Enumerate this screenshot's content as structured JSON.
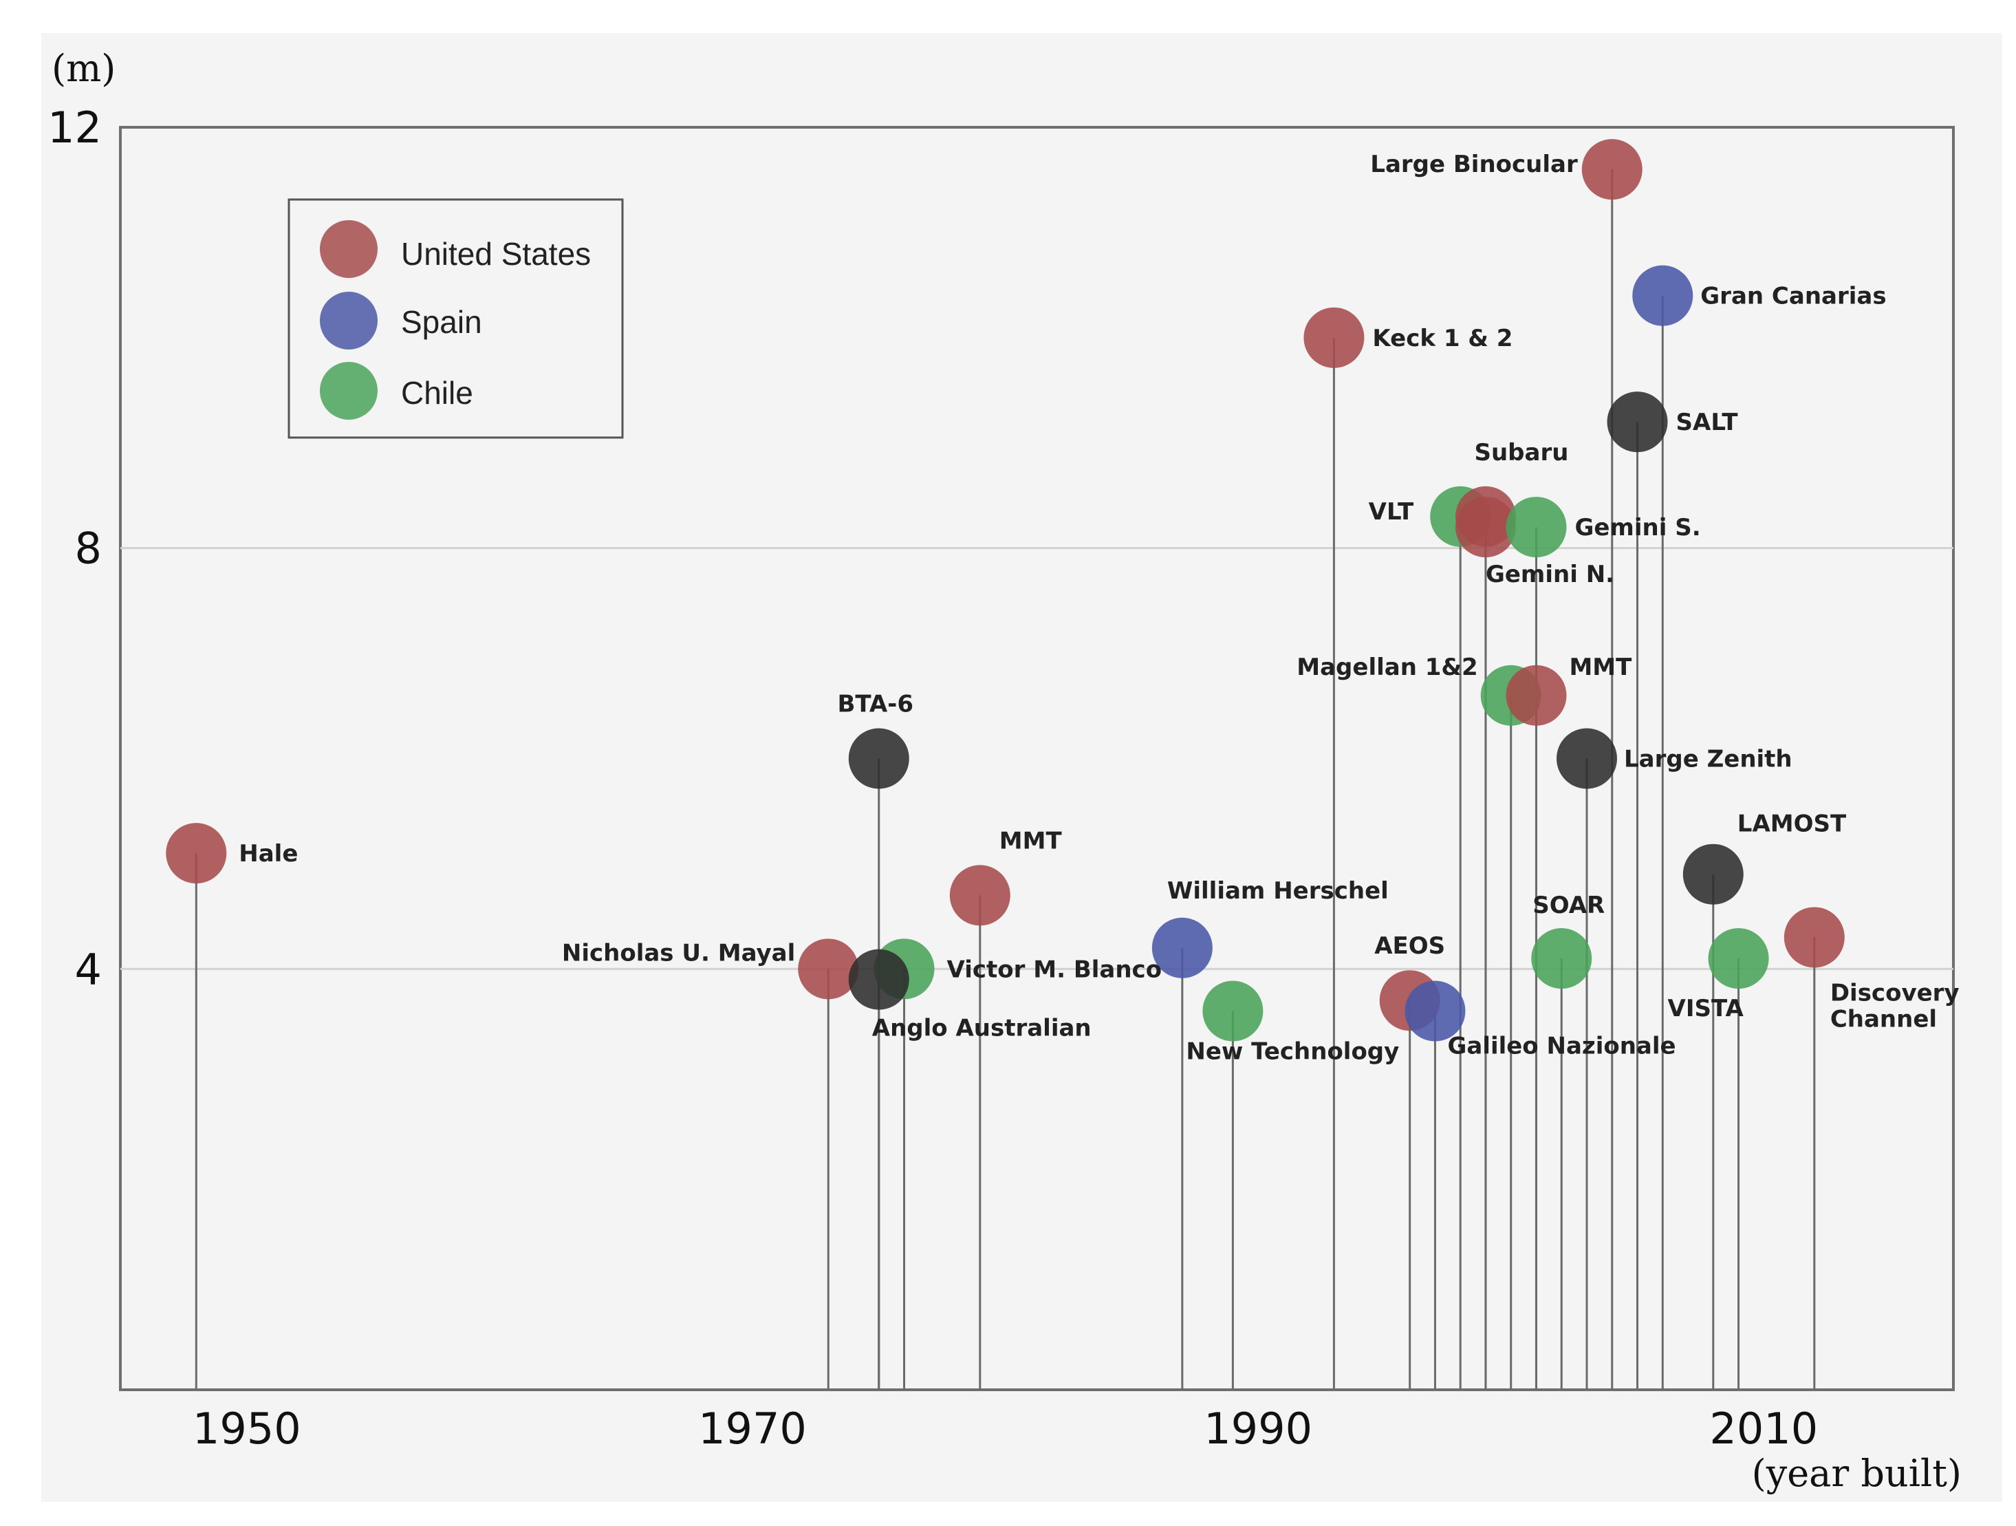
{
  "chart_data": {
    "type": "scatter",
    "style": "lollipop",
    "xlabel": "(year built)",
    "ylabel": "(m)",
    "xlim": [
      1945,
      2017.5
    ],
    "ylim": [
      0,
      12
    ],
    "x_ticks": [
      1950,
      1970,
      1990,
      2010
    ],
    "y_ticks": [
      4,
      8,
      12
    ],
    "grid": "horizontal at 4 and 8",
    "legend": {
      "position": "top-left",
      "entries": [
        {
          "name": "United States",
          "color": "#a64b4b"
        },
        {
          "name": "Spain",
          "color": "#4a58a6"
        },
        {
          "name": "Chile",
          "color": "#4aa35a"
        }
      ]
    },
    "other_color": "#2d2d2d",
    "points": [
      {
        "name": "Hale",
        "year": 1948,
        "aperture": 5.1,
        "group": "United States"
      },
      {
        "name": "BTA-6",
        "year": 1975,
        "aperture": 6.0,
        "group": "Other"
      },
      {
        "name": "Nicholas U. Mayal",
        "year": 1973,
        "aperture": 4.0,
        "group": "United States"
      },
      {
        "name": "Victor M. Blanco",
        "year": 1976,
        "aperture": 4.0,
        "group": "Chile"
      },
      {
        "name": "Anglo Australian",
        "year": 1975,
        "aperture": 3.9,
        "group": "Other"
      },
      {
        "name": "MMT",
        "year": 1979,
        "aperture": 4.7,
        "group": "United States"
      },
      {
        "name": "William Herschel",
        "year": 1987,
        "aperture": 4.2,
        "group": "Spain"
      },
      {
        "name": "New Technology",
        "year": 1989,
        "aperture": 3.6,
        "group": "Chile"
      },
      {
        "name": "Keck 1 & 2",
        "year": 1993,
        "aperture": 10.0,
        "group": "United States"
      },
      {
        "name": "AEOS",
        "year": 1996,
        "aperture": 3.7,
        "group": "United States"
      },
      {
        "name": "Galileo Nazionale",
        "year": 1997,
        "aperture": 3.6,
        "group": "Spain"
      },
      {
        "name": "VLT",
        "year": 1998,
        "aperture": 8.3,
        "group": "Chile"
      },
      {
        "name": "Subaru",
        "year": 1999,
        "aperture": 8.3,
        "group": "United States"
      },
      {
        "name": "Gemini N.",
        "year": 1999,
        "aperture": 8.2,
        "group": "United States"
      },
      {
        "name": "Gemini S.",
        "year": 2001,
        "aperture": 8.2,
        "group": "Chile"
      },
      {
        "name": "Magellan 1&2",
        "year": 2000,
        "aperture": 6.6,
        "group": "Chile"
      },
      {
        "name": "MMT",
        "year": 2001,
        "aperture": 6.6,
        "group": "United States"
      },
      {
        "name": "Large Zenith",
        "year": 2003,
        "aperture": 6.0,
        "group": "Other"
      },
      {
        "name": "SOAR",
        "year": 2002,
        "aperture": 4.1,
        "group": "Chile"
      },
      {
        "name": "Large Binocular",
        "year": 2004,
        "aperture": 11.6,
        "group": "United States"
      },
      {
        "name": "SALT",
        "year": 2005,
        "aperture": 9.2,
        "group": "Other"
      },
      {
        "name": "Gran Canarias",
        "year": 2006,
        "aperture": 10.4,
        "group": "Spain"
      },
      {
        "name": "LAMOST",
        "year": 2008,
        "aperture": 4.9,
        "group": "Other"
      },
      {
        "name": "VISTA",
        "year": 2009,
        "aperture": 4.1,
        "group": "Chile"
      },
      {
        "name": "Discovery Channel",
        "year": 2012,
        "aperture": 4.3,
        "group": "United States"
      }
    ]
  }
}
